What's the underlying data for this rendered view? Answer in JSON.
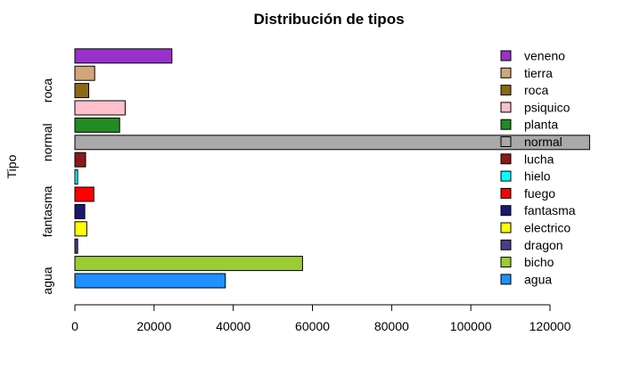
{
  "chart_data": {
    "type": "bar",
    "orientation": "horizontal",
    "title": "Distribución de tipos",
    "ylabel": "Tipo",
    "xlabel": "",
    "xlim": [
      0,
      130000
    ],
    "x_ticks": [
      0,
      20000,
      40000,
      60000,
      80000,
      100000,
      120000
    ],
    "x_tick_labels": [
      "0",
      "20000",
      "40000",
      "60000",
      "80000",
      "100000",
      "120000"
    ],
    "y_tick_labels": [
      {
        "label": "agua",
        "category": "agua"
      },
      {
        "label": "fantasma",
        "category": "fantasma"
      },
      {
        "label": "normal",
        "category": "normal"
      },
      {
        "label": "roca",
        "category": "roca"
      }
    ],
    "categories": [
      "agua",
      "bicho",
      "dragon",
      "electrico",
      "fantasma",
      "fuego",
      "hielo",
      "lucha",
      "normal",
      "planta",
      "psiquico",
      "roca",
      "tierra",
      "veneno"
    ],
    "values": [
      38000,
      57500,
      700,
      3000,
      2500,
      4800,
      700,
      2700,
      130000,
      11300,
      12700,
      3500,
      5000,
      24500
    ],
    "colors": [
      "#1e90ff",
      "#9acd32",
      "#483d8b",
      "#ffff00",
      "#191970",
      "#ff0000",
      "#00ffff",
      "#8b1a1a",
      "#a9a9a9",
      "#228b22",
      "#ffc0cb",
      "#8b6914",
      "#d2a679",
      "#9932cc"
    ],
    "legend": {
      "position": "right",
      "entries": [
        "veneno",
        "tierra",
        "roca",
        "psiquico",
        "planta",
        "normal",
        "lucha",
        "hielo",
        "fuego",
        "fantasma",
        "electrico",
        "dragon",
        "bicho",
        "agua"
      ],
      "colors": [
        "#9932cc",
        "#d2a679",
        "#8b6914",
        "#ffc0cb",
        "#228b22",
        "#a9a9a9",
        "#8b1a1a",
        "#00ffff",
        "#ff0000",
        "#191970",
        "#ffff00",
        "#483d8b",
        "#9acd32",
        "#1e90ff"
      ]
    },
    "grid": false
  }
}
